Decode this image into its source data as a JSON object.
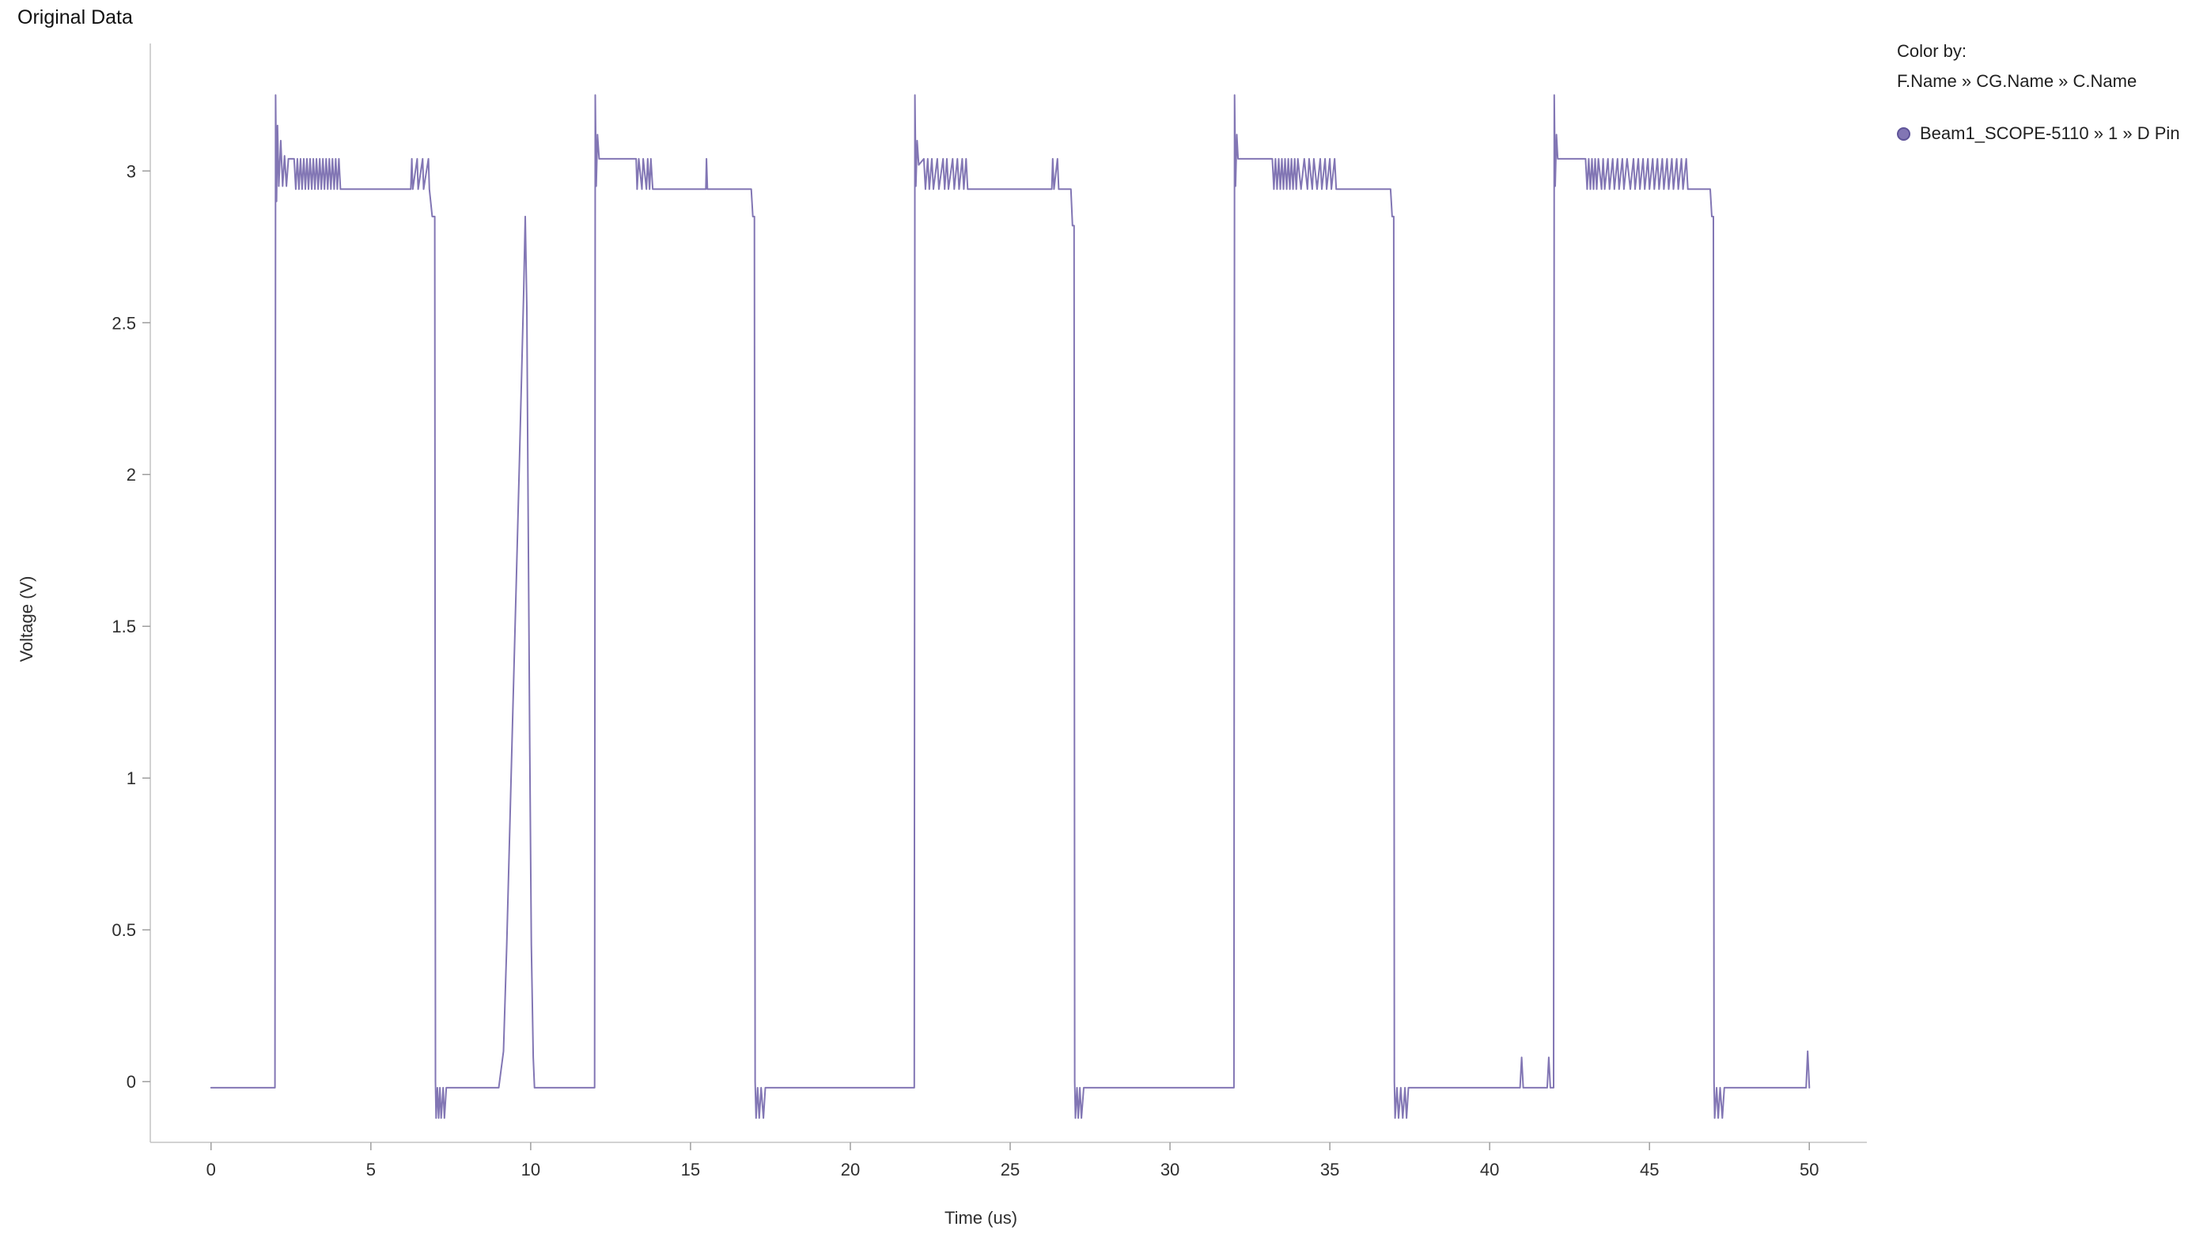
{
  "legend": {
    "heading": "Color by:",
    "hierarchy": "F.Name » CG.Name » C.Name"
  },
  "chart_data": {
    "type": "line",
    "title": "Original Data",
    "xlabel": "Time (us)",
    "ylabel": "Voltage (V)",
    "xlim": [
      -1.9,
      51.8
    ],
    "ylim": [
      -0.2,
      3.42
    ],
    "grid": false,
    "legend_position": "right",
    "axis_color": "#c3c3c3",
    "tick_color": "#9e9e9e",
    "x_ticks": {
      "values": [
        0,
        5,
        10,
        15,
        20,
        25,
        30,
        35,
        40,
        45,
        50
      ],
      "labels": [
        "0",
        "5",
        "10",
        "15",
        "20",
        "25",
        "30",
        "35",
        "40",
        "45",
        "50"
      ]
    },
    "y_ticks": {
      "values": [
        0,
        0.5,
        1,
        1.5,
        2,
        2.5,
        3
      ],
      "labels": [
        "0",
        "0.5",
        "1",
        "1.5",
        "2",
        "2.5",
        "3"
      ]
    },
    "series": [
      {
        "name": "Beam1_SCOPE-5110 » 1 » D Pin",
        "color": "#8276B4",
        "marker_border": "#5f5499",
        "points": [
          [
            0,
            -0.02
          ],
          [
            2,
            -0.02
          ],
          [
            2.02,
            3.25
          ],
          [
            2.05,
            2.9
          ],
          [
            2.08,
            3.15
          ],
          [
            2.12,
            2.95
          ],
          [
            2.18,
            3.1
          ],
          [
            2.24,
            2.95
          ],
          [
            2.3,
            3.05
          ],
          [
            2.36,
            2.95
          ],
          [
            2.42,
            3.04
          ],
          [
            2.6,
            3.04
          ],
          [
            2.65,
            2.94
          ],
          [
            2.7,
            3.04
          ],
          [
            2.75,
            2.94
          ],
          [
            2.8,
            3.04
          ],
          [
            2.85,
            2.94
          ],
          [
            2.9,
            3.04
          ],
          [
            2.95,
            2.94
          ],
          [
            3.0,
            3.04
          ],
          [
            3.05,
            2.94
          ],
          [
            3.1,
            3.04
          ],
          [
            3.15,
            2.94
          ],
          [
            3.2,
            3.04
          ],
          [
            3.25,
            2.94
          ],
          [
            3.3,
            3.04
          ],
          [
            3.35,
            2.94
          ],
          [
            3.4,
            3.04
          ],
          [
            3.45,
            2.94
          ],
          [
            3.5,
            3.04
          ],
          [
            3.55,
            2.94
          ],
          [
            3.6,
            3.04
          ],
          [
            3.65,
            2.94
          ],
          [
            3.7,
            3.04
          ],
          [
            3.75,
            2.94
          ],
          [
            3.8,
            3.04
          ],
          [
            3.85,
            2.94
          ],
          [
            3.9,
            3.04
          ],
          [
            3.95,
            2.94
          ],
          [
            4.0,
            3.04
          ],
          [
            4.05,
            2.94
          ],
          [
            6.25,
            2.94
          ],
          [
            6.28,
            3.04
          ],
          [
            6.31,
            2.94
          ],
          [
            6.45,
            3.04
          ],
          [
            6.48,
            2.94
          ],
          [
            6.62,
            3.04
          ],
          [
            6.65,
            2.94
          ],
          [
            6.8,
            3.04
          ],
          [
            6.83,
            2.94
          ],
          [
            6.92,
            2.85
          ],
          [
            7.0,
            2.85
          ],
          [
            7.02,
            0
          ],
          [
            7.04,
            -0.12
          ],
          [
            7.08,
            -0.02
          ],
          [
            7.12,
            -0.12
          ],
          [
            7.16,
            -0.02
          ],
          [
            7.2,
            -0.12
          ],
          [
            7.26,
            -0.02
          ],
          [
            7.3,
            -0.12
          ],
          [
            7.36,
            -0.02
          ],
          [
            9.0,
            -0.02
          ],
          [
            9.15,
            0.1
          ],
          [
            9.25,
            0.45
          ],
          [
            9.35,
            0.85
          ],
          [
            9.45,
            1.25
          ],
          [
            9.55,
            1.65
          ],
          [
            9.65,
            2.05
          ],
          [
            9.72,
            2.35
          ],
          [
            9.78,
            2.6
          ],
          [
            9.83,
            2.85
          ],
          [
            9.88,
            2.55
          ],
          [
            9.92,
            1.9
          ],
          [
            9.97,
            1.1
          ],
          [
            10.02,
            0.45
          ],
          [
            10.08,
            0.08
          ],
          [
            10.12,
            -0.02
          ],
          [
            12.0,
            -0.02
          ],
          [
            12.02,
            3.25
          ],
          [
            12.05,
            2.95
          ],
          [
            12.09,
            3.12
          ],
          [
            12.14,
            3.04
          ],
          [
            13.3,
            3.04
          ],
          [
            13.33,
            2.94
          ],
          [
            13.38,
            3.04
          ],
          [
            13.48,
            2.94
          ],
          [
            13.52,
            3.04
          ],
          [
            13.62,
            2.94
          ],
          [
            13.66,
            3.04
          ],
          [
            13.72,
            2.94
          ],
          [
            13.76,
            3.04
          ],
          [
            13.82,
            2.94
          ],
          [
            15.48,
            2.94
          ],
          [
            15.5,
            3.04
          ],
          [
            15.53,
            2.94
          ],
          [
            16.9,
            2.94
          ],
          [
            16.95,
            2.85
          ],
          [
            17.0,
            2.85
          ],
          [
            17.02,
            0
          ],
          [
            17.05,
            -0.12
          ],
          [
            17.1,
            -0.02
          ],
          [
            17.15,
            -0.12
          ],
          [
            17.21,
            -0.02
          ],
          [
            17.28,
            -0.12
          ],
          [
            17.34,
            -0.02
          ],
          [
            22.0,
            -0.02
          ],
          [
            22.02,
            3.25
          ],
          [
            22.05,
            2.95
          ],
          [
            22.09,
            3.1
          ],
          [
            22.14,
            3.02
          ],
          [
            22.3,
            3.04
          ],
          [
            22.35,
            2.94
          ],
          [
            22.42,
            3.04
          ],
          [
            22.47,
            2.94
          ],
          [
            22.55,
            3.04
          ],
          [
            22.6,
            2.94
          ],
          [
            22.72,
            3.04
          ],
          [
            22.77,
            2.94
          ],
          [
            22.9,
            3.04
          ],
          [
            22.95,
            2.94
          ],
          [
            23.02,
            3.04
          ],
          [
            23.07,
            2.94
          ],
          [
            23.2,
            3.04
          ],
          [
            23.25,
            2.94
          ],
          [
            23.35,
            3.04
          ],
          [
            23.4,
            2.94
          ],
          [
            23.5,
            3.04
          ],
          [
            23.55,
            2.94
          ],
          [
            23.62,
            3.04
          ],
          [
            23.67,
            2.94
          ],
          [
            26.3,
            2.94
          ],
          [
            26.33,
            3.04
          ],
          [
            26.37,
            2.94
          ],
          [
            26.48,
            3.04
          ],
          [
            26.52,
            2.94
          ],
          [
            26.9,
            2.94
          ],
          [
            26.95,
            2.82
          ],
          [
            27.0,
            2.82
          ],
          [
            27.02,
            0
          ],
          [
            27.04,
            -0.12
          ],
          [
            27.09,
            -0.02
          ],
          [
            27.13,
            -0.12
          ],
          [
            27.18,
            -0.02
          ],
          [
            27.23,
            -0.12
          ],
          [
            27.3,
            -0.02
          ],
          [
            32.0,
            -0.02
          ],
          [
            32.02,
            3.25
          ],
          [
            32.05,
            2.95
          ],
          [
            32.09,
            3.12
          ],
          [
            32.13,
            3.04
          ],
          [
            33.2,
            3.04
          ],
          [
            33.25,
            2.94
          ],
          [
            33.3,
            3.04
          ],
          [
            33.35,
            2.94
          ],
          [
            33.4,
            3.04
          ],
          [
            33.45,
            2.94
          ],
          [
            33.5,
            3.04
          ],
          [
            33.55,
            2.94
          ],
          [
            33.6,
            3.04
          ],
          [
            33.65,
            2.94
          ],
          [
            33.7,
            3.04
          ],
          [
            33.75,
            2.94
          ],
          [
            33.8,
            3.04
          ],
          [
            33.85,
            2.94
          ],
          [
            33.9,
            3.04
          ],
          [
            33.95,
            2.94
          ],
          [
            34.0,
            3.04
          ],
          [
            34.1,
            2.94
          ],
          [
            34.2,
            3.04
          ],
          [
            34.3,
            2.94
          ],
          [
            34.35,
            3.04
          ],
          [
            34.45,
            2.94
          ],
          [
            34.5,
            3.04
          ],
          [
            34.6,
            2.94
          ],
          [
            34.7,
            3.04
          ],
          [
            34.75,
            2.94
          ],
          [
            34.85,
            3.04
          ],
          [
            34.9,
            2.94
          ],
          [
            35.0,
            3.04
          ],
          [
            35.05,
            2.94
          ],
          [
            35.15,
            3.04
          ],
          [
            35.2,
            2.94
          ],
          [
            36.9,
            2.94
          ],
          [
            36.95,
            2.85
          ],
          [
            37.0,
            2.85
          ],
          [
            37.02,
            0
          ],
          [
            37.04,
            -0.12
          ],
          [
            37.1,
            -0.02
          ],
          [
            37.15,
            -0.12
          ],
          [
            37.22,
            -0.02
          ],
          [
            37.28,
            -0.12
          ],
          [
            37.35,
            -0.02
          ],
          [
            37.4,
            -0.12
          ],
          [
            37.46,
            -0.02
          ],
          [
            40.95,
            -0.02
          ],
          [
            41.0,
            0.08
          ],
          [
            41.05,
            -0.02
          ],
          [
            41.8,
            -0.02
          ],
          [
            41.85,
            0.08
          ],
          [
            41.9,
            -0.02
          ],
          [
            42.0,
            -0.02
          ],
          [
            42.02,
            3.25
          ],
          [
            42.05,
            2.95
          ],
          [
            42.09,
            3.12
          ],
          [
            42.13,
            3.04
          ],
          [
            43.0,
            3.04
          ],
          [
            43.05,
            2.94
          ],
          [
            43.1,
            3.04
          ],
          [
            43.15,
            2.94
          ],
          [
            43.2,
            3.04
          ],
          [
            43.25,
            2.94
          ],
          [
            43.3,
            3.04
          ],
          [
            43.35,
            2.94
          ],
          [
            43.4,
            3.04
          ],
          [
            43.5,
            2.94
          ],
          [
            43.55,
            3.04
          ],
          [
            43.6,
            2.94
          ],
          [
            43.7,
            3.04
          ],
          [
            43.75,
            2.94
          ],
          [
            43.85,
            3.04
          ],
          [
            43.9,
            2.94
          ],
          [
            44.0,
            3.04
          ],
          [
            44.05,
            2.94
          ],
          [
            44.15,
            3.04
          ],
          [
            44.2,
            2.94
          ],
          [
            44.3,
            3.04
          ],
          [
            44.4,
            2.94
          ],
          [
            44.5,
            3.04
          ],
          [
            44.55,
            2.94
          ],
          [
            44.65,
            3.04
          ],
          [
            44.7,
            2.94
          ],
          [
            44.8,
            3.04
          ],
          [
            44.85,
            2.94
          ],
          [
            44.95,
            3.04
          ],
          [
            45.0,
            2.94
          ],
          [
            45.1,
            3.04
          ],
          [
            45.15,
            2.94
          ],
          [
            45.25,
            3.04
          ],
          [
            45.3,
            2.94
          ],
          [
            45.4,
            3.04
          ],
          [
            45.45,
            2.94
          ],
          [
            45.55,
            3.04
          ],
          [
            45.6,
            2.94
          ],
          [
            45.7,
            3.04
          ],
          [
            45.75,
            2.94
          ],
          [
            45.85,
            3.04
          ],
          [
            45.9,
            2.94
          ],
          [
            46.0,
            3.04
          ],
          [
            46.05,
            2.94
          ],
          [
            46.15,
            3.04
          ],
          [
            46.2,
            2.94
          ],
          [
            46.9,
            2.94
          ],
          [
            46.95,
            2.85
          ],
          [
            47.0,
            2.85
          ],
          [
            47.02,
            0
          ],
          [
            47.04,
            -0.12
          ],
          [
            47.1,
            -0.02
          ],
          [
            47.15,
            -0.12
          ],
          [
            47.21,
            -0.02
          ],
          [
            47.28,
            -0.12
          ],
          [
            47.34,
            -0.02
          ],
          [
            49.9,
            -0.02
          ],
          [
            49.95,
            0.1
          ],
          [
            50.0,
            -0.02
          ]
        ]
      }
    ]
  }
}
